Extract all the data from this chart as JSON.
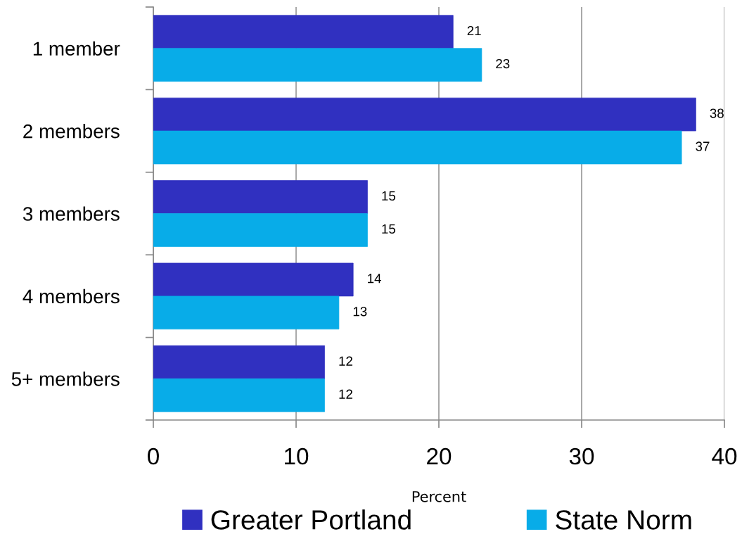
{
  "chart_data": {
    "type": "bar",
    "orientation": "horizontal",
    "categories": [
      "1 member",
      "2 members",
      "3 members",
      "4 members",
      "5+ members"
    ],
    "series": [
      {
        "name": "Greater Portland",
        "color": "#3030c0",
        "values": [
          21,
          38,
          15,
          14,
          12
        ]
      },
      {
        "name": "State Norm",
        "color": "#08ace8",
        "values": [
          23,
          37,
          15,
          13,
          12
        ]
      }
    ],
    "xlabel": "Percent",
    "xlim": [
      0,
      40
    ],
    "xticks": [
      0,
      10,
      20,
      30,
      40
    ],
    "grid": "x",
    "legend": "bottom",
    "data_labels": true
  }
}
